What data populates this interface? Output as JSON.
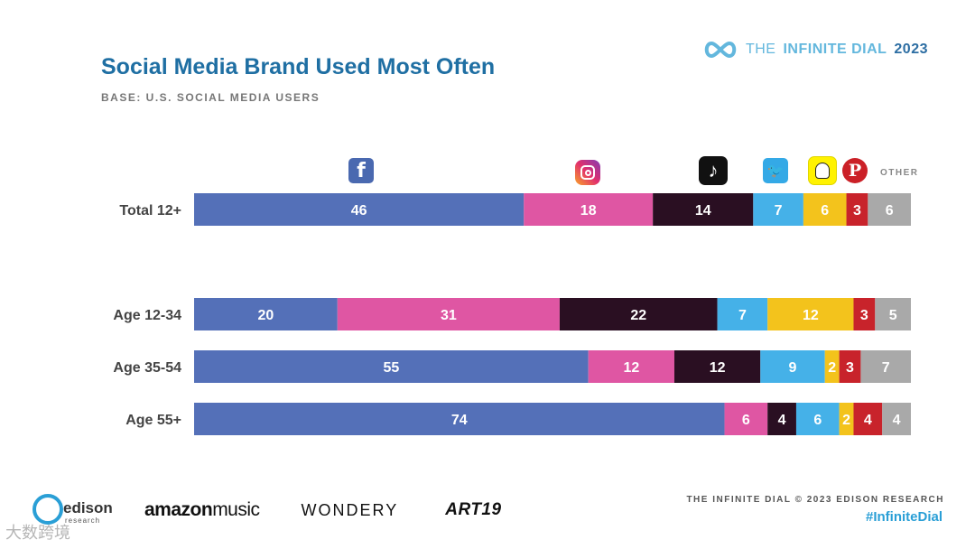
{
  "header": {
    "title": "Social Media Brand Used Most Often",
    "subtitle": "BASE: U.S. SOCIAL MEDIA USERS",
    "brand_pre": "THE",
    "brand_mid": "INFINITE DIAL",
    "brand_year": "2023"
  },
  "icons": {
    "facebook_glyph": "f",
    "tiktok_glyph": "♪",
    "twitter_glyph": "🐦",
    "pinterest_glyph": "P",
    "other_label": "OTHER"
  },
  "colors": {
    "Facebook": "#5470b8",
    "Instagram": "#df56a3",
    "TikTok": "#2a0f22",
    "Twitter": "#45b1e8",
    "Snapchat": "#f3c31c",
    "Pinterest": "#c8232b",
    "Other": "#a9a9a9"
  },
  "chart_data": {
    "type": "bar",
    "orientation": "horizontal",
    "stacked": true,
    "categories": [
      "Total 12+",
      "Age 12-34",
      "Age 35-54",
      "Age 55+"
    ],
    "series": [
      {
        "key": "Facebook",
        "values": [
          46,
          20,
          55,
          74
        ]
      },
      {
        "key": "Instagram",
        "values": [
          18,
          31,
          12,
          6
        ]
      },
      {
        "key": "TikTok",
        "values": [
          14,
          22,
          12,
          4
        ]
      },
      {
        "key": "Twitter",
        "values": [
          7,
          7,
          9,
          6
        ]
      },
      {
        "key": "Snapchat",
        "values": [
          6,
          12,
          2,
          2
        ]
      },
      {
        "key": "Pinterest",
        "values": [
          3,
          3,
          3,
          4
        ]
      },
      {
        "key": "Other",
        "values": [
          6,
          5,
          7,
          4
        ]
      }
    ],
    "legend": "icons-above-bars",
    "grid": false
  },
  "footer": {
    "edison_name": "edison",
    "edison_sub": "research",
    "amazon_a": "amazon",
    "amazon_b": "music",
    "wondery": "WONDERY",
    "art19": "ART19",
    "credit": "THE INFINITE DIAL   © 2023 EDISON RESEARCH",
    "hashtag": "#InfiniteDial",
    "watermark": "大数跨境"
  }
}
